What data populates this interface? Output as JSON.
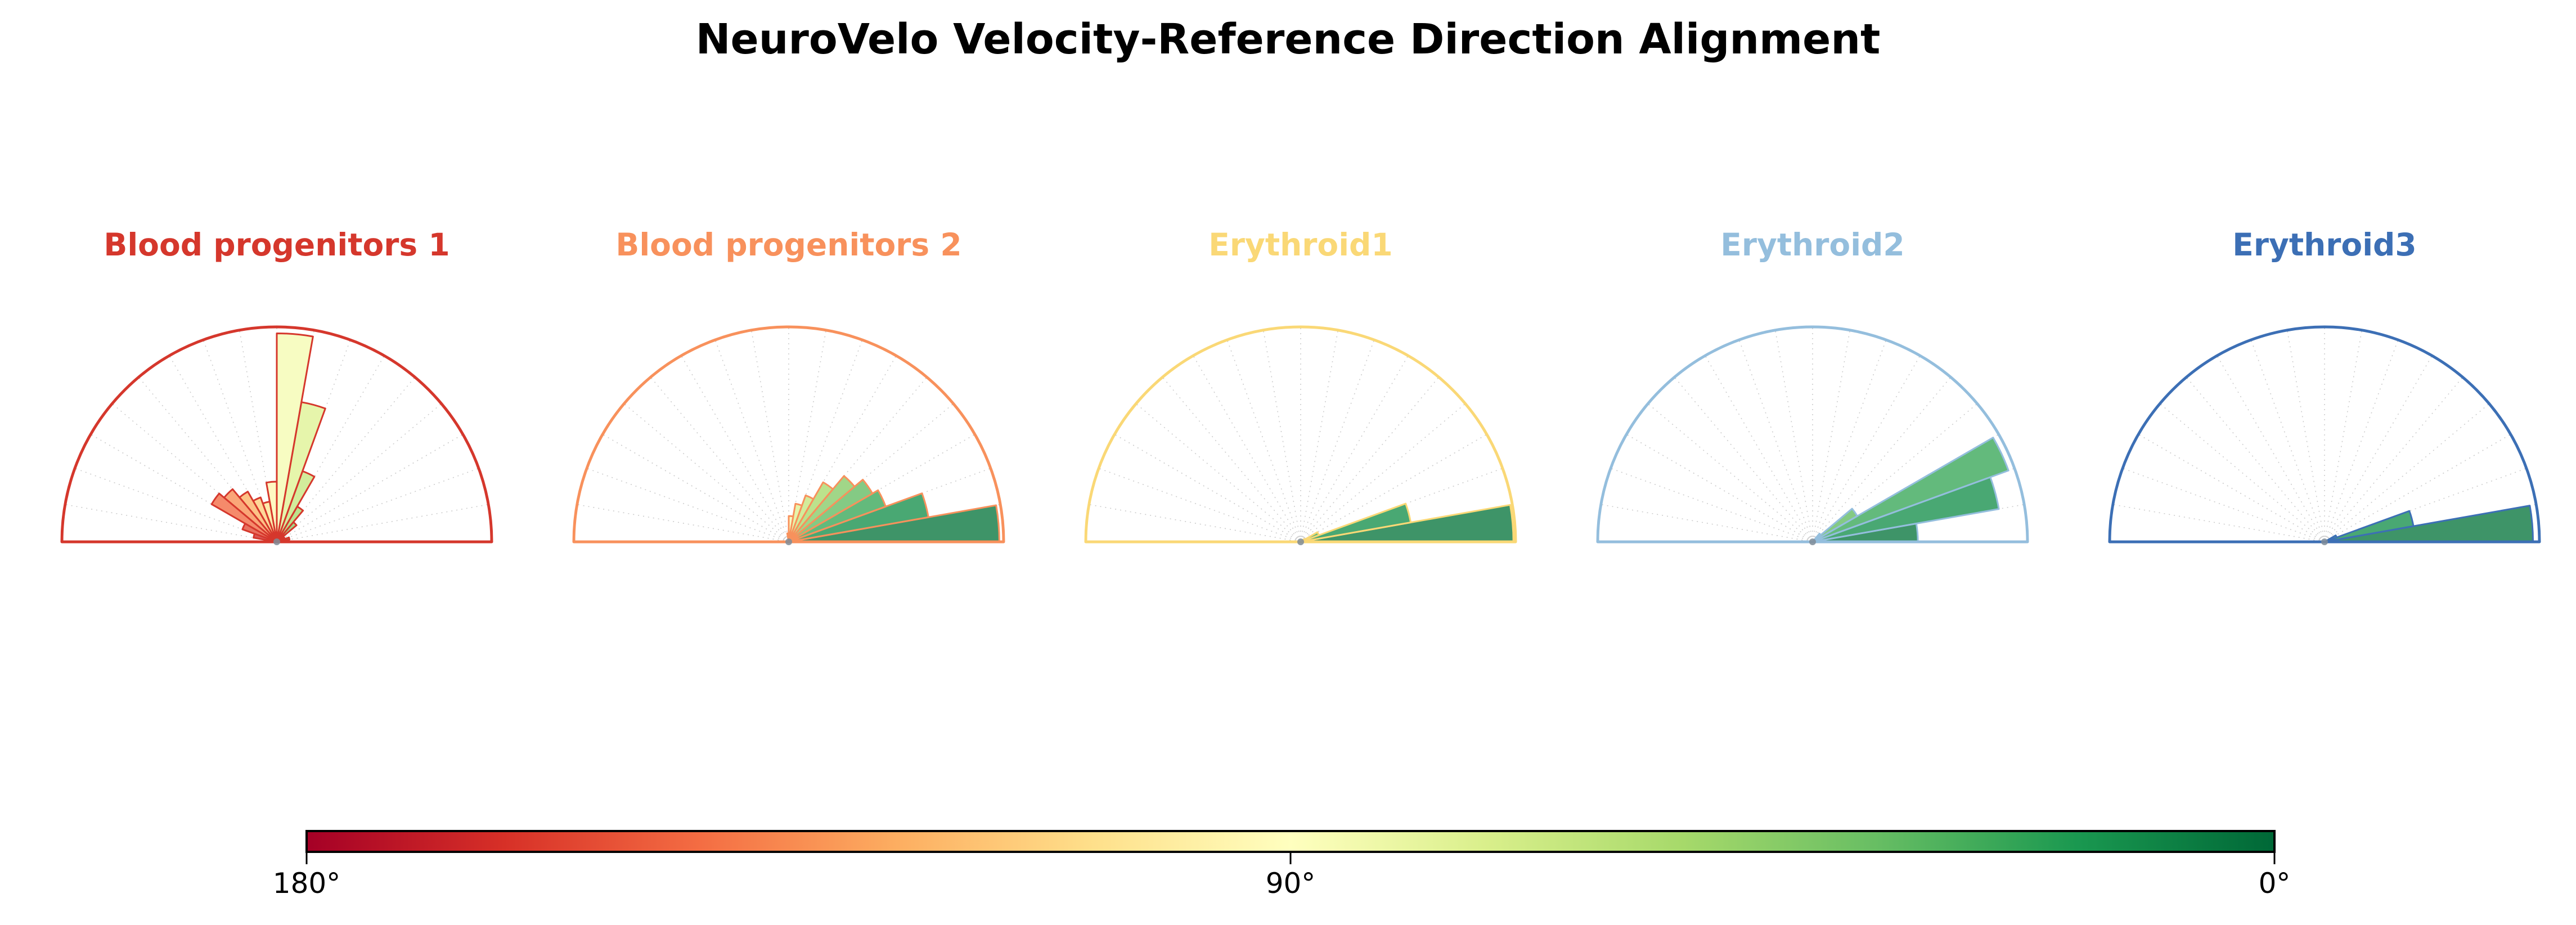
{
  "chart_data": {
    "type": "polar_histogram",
    "suptitle": "NeuroVelo Velocity-Reference Direction Alignment",
    "layout": "1x5 row of half-polar (0-180 degree) rose histograms with shared horizontal angle colorbar below",
    "theta_range_deg": [
      0,
      180
    ],
    "bin_width_deg": 10,
    "grid_step_deg": 10,
    "bin_edges_deg": [
      0,
      10,
      20,
      30,
      40,
      50,
      60,
      70,
      80,
      90,
      100,
      110,
      120,
      130,
      140,
      150,
      160,
      170,
      180
    ],
    "bin_centers_deg": [
      5,
      15,
      25,
      35,
      45,
      55,
      65,
      75,
      85,
      95,
      105,
      115,
      125,
      135,
      145,
      155,
      165,
      175
    ],
    "radial_range": [
      0,
      1
    ],
    "values_are": "relative frequency of cells per angle bin, as fraction of full radius",
    "bar_color_rule": "fill = RdYlGn(1 - bin_center/180deg): 0deg -> dark green, 90deg -> pale yellow, 180deg -> dark red; bar edge = cluster accent color",
    "series": [
      {
        "name": "Blood progenitors 1",
        "accent_color": "#d5372c",
        "values": [
          0.02,
          0.06,
          0.04,
          0.03,
          0.12,
          0.19,
          0.35,
          0.66,
          0.97,
          0.28,
          0.19,
          0.22,
          0.27,
          0.32,
          0.35,
          0.17,
          0.11,
          0.05
        ]
      },
      {
        "name": "Blood progenitors 2",
        "accent_color": "#f8915c",
        "values": [
          0.98,
          0.66,
          0.48,
          0.45,
          0.4,
          0.32,
          0.23,
          0.18,
          0.12,
          0.04,
          0,
          0,
          0,
          0,
          0,
          0,
          0,
          0
        ]
      },
      {
        "name": "Erythroid1",
        "accent_color": "#fad876",
        "values": [
          0.99,
          0.52,
          0.09,
          0.02,
          0,
          0,
          0,
          0,
          0,
          0,
          0,
          0,
          0,
          0,
          0,
          0,
          0,
          0
        ]
      },
      {
        "name": "Erythroid2",
        "accent_color": "#94bedd",
        "values": [
          0.49,
          0.88,
          0.97,
          0.24,
          0.05,
          0,
          0,
          0,
          0,
          0,
          0,
          0,
          0,
          0,
          0,
          0,
          0,
          0
        ]
      },
      {
        "name": "Erythroid3",
        "accent_color": "#3c6fb5",
        "values": [
          0.97,
          0.42,
          0.06,
          0,
          0,
          0,
          0,
          0,
          0,
          0,
          0,
          0,
          0,
          0,
          0,
          0,
          0,
          0
        ]
      }
    ],
    "colorbar": {
      "orientation": "horizontal",
      "colormap": "RdYlGn",
      "gradient_anchors": [
        "#a50026",
        "#d73027",
        "#f46d43",
        "#fdae61",
        "#fee08b",
        "#ffffbf",
        "#d9ef8b",
        "#a6d96a",
        "#66bd63",
        "#1a9850",
        "#006837"
      ],
      "ticks": [
        {
          "label": "180°",
          "position": 0
        },
        {
          "label": "90°",
          "position": 0.5
        },
        {
          "label": "0°",
          "position": 1
        }
      ],
      "border_color": "#000000"
    },
    "style": {
      "background": "#ffffff",
      "suptitle_color": "#000000",
      "grid_color": "#cccccc",
      "spine_width": 5,
      "bar_edge_width": 3,
      "bar_fill_alpha": 0.78,
      "center_marker_color": "#7f8c98"
    }
  }
}
